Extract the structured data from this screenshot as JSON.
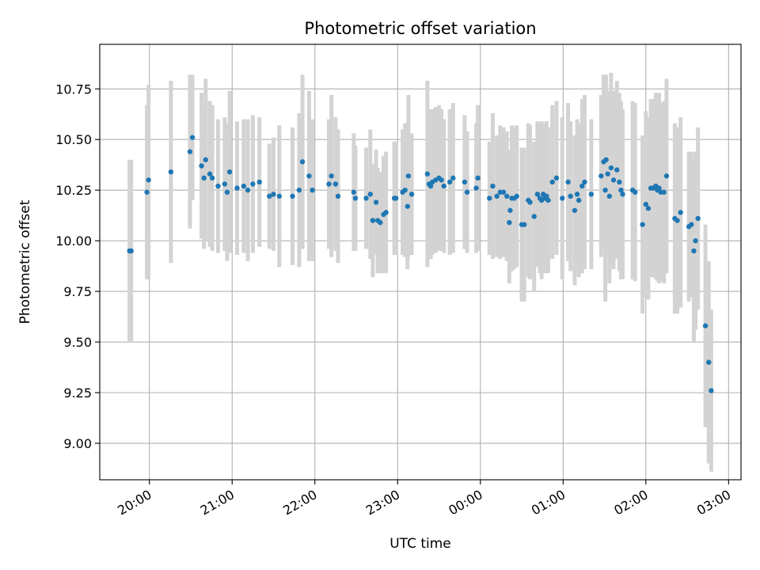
{
  "chart_data": {
    "type": "scatter",
    "title": "Photometric offset variation",
    "xlabel": "UTC time",
    "ylabel": "Photometric offset",
    "x_unit": "hours after 20:00 UTC",
    "xlim": [
      -0.6,
      7.15
    ],
    "ylim": [
      8.82,
      10.97
    ],
    "x_ticks": [
      {
        "value": 0,
        "label": "20:00"
      },
      {
        "value": 1,
        "label": "21:00"
      },
      {
        "value": 2,
        "label": "22:00"
      },
      {
        "value": 3,
        "label": "23:00"
      },
      {
        "value": 4,
        "label": "00:00"
      },
      {
        "value": 5,
        "label": "01:00"
      },
      {
        "value": 6,
        "label": "02:00"
      },
      {
        "value": 7,
        "label": "03:00"
      }
    ],
    "y_ticks": [
      {
        "value": 9.0,
        "label": "9.00"
      },
      {
        "value": 9.25,
        "label": "9.25"
      },
      {
        "value": 9.5,
        "label": "9.50"
      },
      {
        "value": 9.75,
        "label": "9.75"
      },
      {
        "value": 10.0,
        "label": "10.00"
      },
      {
        "value": 10.25,
        "label": "10.25"
      },
      {
        "value": 10.5,
        "label": "10.50"
      },
      {
        "value": 10.75,
        "label": "10.75"
      }
    ],
    "grid": true,
    "colors": {
      "point": "#1f77b4",
      "errorbar": "#d3d3d3",
      "grid": "#b0b0b0"
    },
    "points": [
      [
        -0.24,
        9.95,
        0.45
      ],
      [
        -0.22,
        9.95,
        0.45
      ],
      [
        -0.03,
        10.24,
        0.43
      ],
      [
        -0.01,
        10.3,
        0.47
      ],
      [
        0.26,
        10.34,
        0.45
      ],
      [
        0.49,
        10.44,
        0.38
      ],
      [
        0.52,
        10.51,
        0.31
      ],
      [
        0.63,
        10.37,
        0.36
      ],
      [
        0.66,
        10.31,
        0.35
      ],
      [
        0.68,
        10.4,
        0.4
      ],
      [
        0.73,
        10.33,
        0.36
      ],
      [
        0.76,
        10.31,
        0.36
      ],
      [
        0.83,
        10.27,
        0.33
      ],
      [
        0.91,
        10.28,
        0.33
      ],
      [
        0.94,
        10.24,
        0.34
      ],
      [
        0.97,
        10.34,
        0.4
      ],
      [
        1.06,
        10.26,
        0.33
      ],
      [
        1.14,
        10.27,
        0.33
      ],
      [
        1.19,
        10.25,
        0.35
      ],
      [
        1.25,
        10.28,
        0.34
      ],
      [
        1.33,
        10.29,
        0.32
      ],
      [
        1.45,
        10.22,
        0.26
      ],
      [
        1.5,
        10.23,
        0.28
      ],
      [
        1.57,
        10.22,
        0.35
      ],
      [
        1.73,
        10.22,
        0.34
      ],
      [
        1.81,
        10.25,
        0.38
      ],
      [
        1.85,
        10.39,
        0.43
      ],
      [
        1.93,
        10.32,
        0.42
      ],
      [
        1.97,
        10.25,
        0.35
      ],
      [
        2.17,
        10.28,
        0.32
      ],
      [
        2.2,
        10.32,
        0.4
      ],
      [
        2.25,
        10.28,
        0.33
      ],
      [
        2.28,
        10.22,
        0.33
      ],
      [
        2.47,
        10.24,
        0.29
      ],
      [
        2.49,
        10.21,
        0.26
      ],
      [
        2.62,
        10.21,
        0.25
      ],
      [
        2.67,
        10.23,
        0.32
      ],
      [
        2.7,
        10.1,
        0.28
      ],
      [
        2.74,
        10.19,
        0.26
      ],
      [
        2.76,
        10.1,
        0.26
      ],
      [
        2.79,
        10.09,
        0.25
      ],
      [
        2.83,
        10.13,
        0.29
      ],
      [
        2.86,
        10.14,
        0.3
      ],
      [
        2.96,
        10.21,
        0.28
      ],
      [
        2.98,
        10.21,
        0.28
      ],
      [
        3.06,
        10.24,
        0.31
      ],
      [
        3.09,
        10.25,
        0.33
      ],
      [
        3.12,
        10.17,
        0.31
      ],
      [
        3.13,
        10.32,
        0.4
      ],
      [
        3.17,
        10.23,
        0.3
      ],
      [
        3.36,
        10.33,
        0.46
      ],
      [
        3.38,
        10.28,
        0.37
      ],
      [
        3.4,
        10.27,
        0.36
      ],
      [
        3.42,
        10.29,
        0.36
      ],
      [
        3.46,
        10.3,
        0.36
      ],
      [
        3.5,
        10.31,
        0.36
      ],
      [
        3.53,
        10.3,
        0.35
      ],
      [
        3.56,
        10.27,
        0.33
      ],
      [
        3.63,
        10.29,
        0.36
      ],
      [
        3.67,
        10.31,
        0.37
      ],
      [
        3.81,
        10.29,
        0.33
      ],
      [
        3.84,
        10.24,
        0.3
      ],
      [
        3.95,
        10.26,
        0.32
      ],
      [
        3.97,
        10.31,
        0.36
      ],
      [
        4.11,
        10.21,
        0.28
      ],
      [
        4.15,
        10.27,
        0.36
      ],
      [
        4.2,
        10.22,
        0.3
      ],
      [
        4.24,
        10.24,
        0.33
      ],
      [
        4.28,
        10.24,
        0.32
      ],
      [
        4.32,
        10.22,
        0.32
      ],
      [
        4.35,
        10.09,
        0.3
      ],
      [
        4.36,
        10.15,
        0.3
      ],
      [
        4.38,
        10.21,
        0.36
      ],
      [
        4.41,
        10.21,
        0.35
      ],
      [
        4.44,
        10.22,
        0.35
      ],
      [
        4.5,
        10.08,
        0.38
      ],
      [
        4.53,
        10.08,
        0.38
      ],
      [
        4.58,
        10.2,
        0.38
      ],
      [
        4.6,
        10.19,
        0.38
      ],
      [
        4.65,
        10.12,
        0.37
      ],
      [
        4.69,
        10.23,
        0.36
      ],
      [
        4.72,
        10.21,
        0.37
      ],
      [
        4.74,
        10.2,
        0.39
      ],
      [
        4.76,
        10.23,
        0.35
      ],
      [
        4.78,
        10.21,
        0.37
      ],
      [
        4.8,
        10.22,
        0.37
      ],
      [
        4.82,
        10.2,
        0.36
      ],
      [
        4.87,
        10.29,
        0.38
      ],
      [
        4.92,
        10.31,
        0.38
      ],
      [
        4.99,
        10.21,
        0.4
      ],
      [
        5.06,
        10.29,
        0.39
      ],
      [
        5.09,
        10.22,
        0.37
      ],
      [
        5.14,
        10.15,
        0.37
      ],
      [
        5.17,
        10.23,
        0.37
      ],
      [
        5.19,
        10.2,
        0.38
      ],
      [
        5.23,
        10.27,
        0.43
      ],
      [
        5.26,
        10.29,
        0.43
      ],
      [
        5.34,
        10.23,
        0.37
      ],
      [
        5.46,
        10.32,
        0.4
      ],
      [
        5.49,
        10.39,
        0.43
      ],
      [
        5.51,
        10.25,
        0.55
      ],
      [
        5.52,
        10.4,
        0.42
      ],
      [
        5.54,
        10.33,
        0.41
      ],
      [
        5.56,
        10.22,
        0.43
      ],
      [
        5.58,
        10.36,
        0.47
      ],
      [
        5.61,
        10.3,
        0.44
      ],
      [
        5.65,
        10.35,
        0.44
      ],
      [
        5.68,
        10.29,
        0.44
      ],
      [
        5.7,
        10.25,
        0.44
      ],
      [
        5.72,
        10.23,
        0.42
      ],
      [
        5.84,
        10.25,
        0.44
      ],
      [
        5.87,
        10.24,
        0.44
      ],
      [
        5.96,
        10.08,
        0.44
      ],
      [
        6.0,
        10.18,
        0.46
      ],
      [
        6.03,
        10.16,
        0.45
      ],
      [
        6.06,
        10.26,
        0.44
      ],
      [
        6.09,
        10.26,
        0.44
      ],
      [
        6.12,
        10.27,
        0.46
      ],
      [
        6.14,
        10.25,
        0.45
      ],
      [
        6.16,
        10.26,
        0.47
      ],
      [
        6.18,
        10.24,
        0.44
      ],
      [
        6.22,
        10.24,
        0.45
      ],
      [
        6.25,
        10.32,
        0.48
      ],
      [
        6.35,
        10.11,
        0.47
      ],
      [
        6.38,
        10.1,
        0.46
      ],
      [
        6.42,
        10.14,
        0.47
      ],
      [
        6.52,
        10.07,
        0.37
      ],
      [
        6.55,
        10.08,
        0.36
      ],
      [
        6.58,
        9.95,
        0.45
      ],
      [
        6.6,
        10.0,
        0.44
      ],
      [
        6.63,
        10.11,
        0.45
      ],
      [
        6.72,
        9.58,
        0.5
      ],
      [
        6.76,
        9.4,
        0.5
      ],
      [
        6.79,
        9.26,
        0.4
      ]
    ]
  }
}
